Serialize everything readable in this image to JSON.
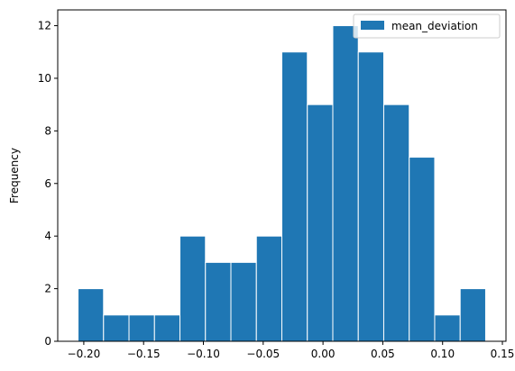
{
  "chart_data": {
    "type": "bar",
    "subtype": "histogram",
    "title": "",
    "xlabel": "",
    "ylabel": "Frequency",
    "bin_edges": [
      -0.2048,
      -0.1835,
      -0.1622,
      -0.1409,
      -0.1196,
      -0.0983,
      -0.077,
      -0.0557,
      -0.0344,
      -0.0131,
      0.0082,
      0.0295,
      0.0508,
      0.0721,
      0.0934,
      0.1147,
      0.136
    ],
    "values": [
      2,
      1,
      1,
      1,
      4,
      3,
      3,
      4,
      11,
      9,
      12,
      11,
      9,
      7,
      1,
      2
    ],
    "series": [
      {
        "name": "mean_deviation",
        "color": "#1f77b4"
      }
    ],
    "xlim": [
      -0.2218,
      0.153
    ],
    "ylim": [
      0,
      12.6
    ],
    "xticks": [
      -0.2,
      -0.15,
      -0.1,
      -0.05,
      0.0,
      0.05,
      0.1,
      0.15
    ],
    "xtick_labels": [
      "−0.20",
      "−0.15",
      "−0.10",
      "−0.05",
      "0.00",
      "0.05",
      "0.10",
      "0.15"
    ],
    "yticks": [
      0,
      2,
      4,
      6,
      8,
      10,
      12
    ],
    "ytick_labels": [
      "0",
      "2",
      "4",
      "6",
      "8",
      "10",
      "12"
    ],
    "grid": false,
    "legend_position": "top-right",
    "bar_edge_color": "#ffffff"
  }
}
